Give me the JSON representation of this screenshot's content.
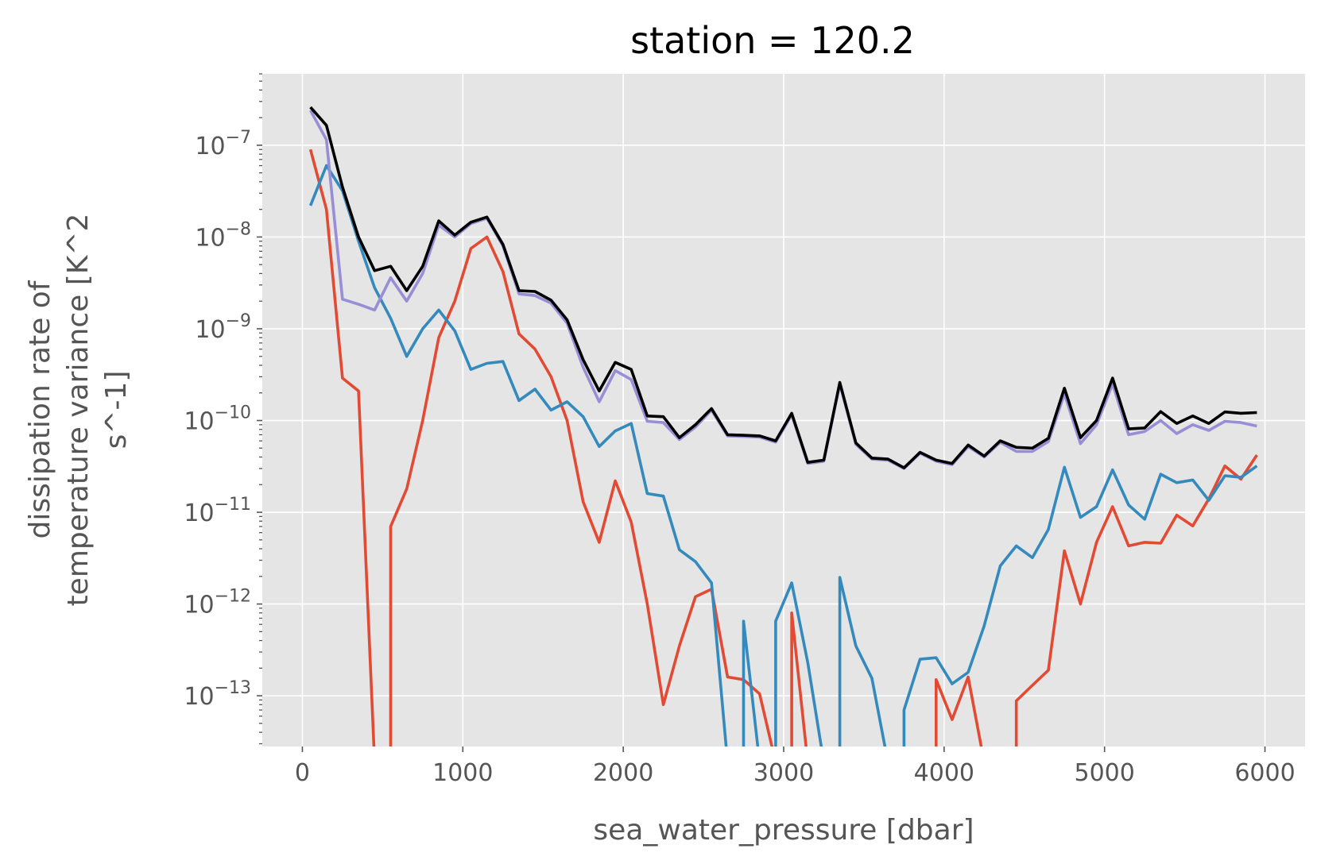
{
  "chart_data": {
    "type": "line",
    "title": "station = 120.2",
    "xlabel": "sea_water_pressure [dbar]",
    "ylabel_lines": [
      "dissipation rate of",
      "temperature variance [K^2",
      "s^-1]"
    ],
    "xscale": "linear",
    "yscale": "log",
    "xlim": [
      -250,
      6250
    ],
    "ylim": [
      2.8e-14,
      6e-07
    ],
    "xticks": [
      0,
      1000,
      2000,
      3000,
      4000,
      5000,
      6000
    ],
    "xtick_labels": [
      "0",
      "1000",
      "2000",
      "3000",
      "4000",
      "5000",
      "6000"
    ],
    "yticks": [
      {
        "base": "10",
        "exp": "−7",
        "value": 1e-07
      },
      {
        "base": "10",
        "exp": "−8",
        "value": 1e-08
      },
      {
        "base": "10",
        "exp": "−9",
        "value": 1e-09
      },
      {
        "base": "10",
        "exp": "−10",
        "value": 1e-10
      },
      {
        "base": "10",
        "exp": "−11",
        "value": 1e-11
      },
      {
        "base": "10",
        "exp": "−12",
        "value": 1e-12
      },
      {
        "base": "10",
        "exp": "−13",
        "value": 1e-13
      }
    ],
    "grid": true,
    "x": [
      50,
      150,
      250,
      350,
      450,
      550,
      650,
      750,
      850,
      950,
      1050,
      1150,
      1250,
      1350,
      1450,
      1550,
      1650,
      1750,
      1850,
      1950,
      2050,
      2150,
      2250,
      2350,
      2450,
      2550,
      2650,
      2750,
      2850,
      2950,
      3050,
      3150,
      3250,
      3350,
      3450,
      3550,
      3650,
      3750,
      3850,
      3950,
      4050,
      4150,
      4250,
      4350,
      4450,
      4550,
      4650,
      4750,
      4850,
      4950,
      5050,
      5150,
      5250,
      5350,
      5450,
      5550,
      5650,
      5750,
      5850,
      5950
    ],
    "series": [
      {
        "name": "red",
        "color": "#E24A33",
        "values": [
          9e-08,
          2e-08,
          2.9e-10,
          2.1e-10,
          null,
          7e-12,
          1.8e-11,
          1e-10,
          8e-10,
          2e-09,
          7.5e-09,
          1e-08,
          4.2e-09,
          8.8e-10,
          6e-10,
          3e-10,
          1e-10,
          1.3e-11,
          4.7e-12,
          2.2e-11,
          7.8e-12,
          1e-12,
          8e-14,
          3.5e-13,
          1.2e-12,
          1.45e-12,
          1.6e-13,
          1.5e-13,
          1.05e-13,
          null,
          8e-13,
          null,
          null,
          null,
          null,
          null,
          null,
          null,
          null,
          1.5e-13,
          5.5e-14,
          1.6e-13,
          null,
          null,
          8.8e-14,
          1.3e-13,
          1.9e-13,
          3.8e-12,
          1e-12,
          4.7e-12,
          1.15e-11,
          4.3e-12,
          4.7e-12,
          4.6e-12,
          9.3e-12,
          7.1e-12,
          1.4e-11,
          3.2e-11,
          2.3e-11,
          4.2e-11
        ]
      },
      {
        "name": "blue",
        "color": "#348ABD",
        "values": [
          2.2e-08,
          6e-08,
          3.2e-08,
          9e-09,
          2.8e-09,
          1.3e-09,
          5e-10,
          1e-09,
          1.6e-09,
          9.5e-10,
          3.6e-10,
          4.2e-10,
          4.4e-10,
          1.65e-10,
          2.2e-10,
          1.3e-10,
          1.6e-10,
          1.1e-10,
          5.2e-11,
          7.7e-11,
          9.3e-11,
          1.6e-11,
          1.5e-11,
          3.9e-12,
          2.9e-12,
          1.7e-12,
          null,
          6.5e-13,
          null,
          6.5e-13,
          1.7e-12,
          2.3e-13,
          null,
          1.95e-12,
          3.5e-13,
          1.55e-13,
          null,
          7e-14,
          2.5e-13,
          2.6e-13,
          1.35e-13,
          1.8e-13,
          5.8e-13,
          2.6e-12,
          4.3e-12,
          3.2e-12,
          6.5e-12,
          3.1e-11,
          8.8e-12,
          1.15e-11,
          2.9e-11,
          1.2e-11,
          8.4e-12,
          2.6e-11,
          2.1e-11,
          2.25e-11,
          1.35e-11,
          2.5e-11,
          2.4e-11,
          3.2e-11
        ]
      },
      {
        "name": "purple",
        "color": "#988ED5",
        "values": [
          2.4e-07,
          1.15e-07,
          2.1e-09,
          1.85e-09,
          1.6e-09,
          3.6e-09,
          2e-09,
          4e-09,
          1.35e-08,
          1e-08,
          1.4e-08,
          1.6e-08,
          8e-09,
          2.4e-09,
          2.3e-09,
          1.9e-09,
          1.15e-09,
          3.8e-10,
          1.6e-10,
          3.5e-10,
          2.8e-10,
          9.8e-11,
          9.5e-11,
          6.2e-11,
          8.5e-11,
          1.3e-10,
          6.8e-11,
          6.7e-11,
          6.6e-11,
          5.8e-11,
          1.15e-10,
          3.4e-11,
          3.6e-11,
          2.5e-10,
          5.5e-11,
          3.8e-11,
          3.7e-11,
          3e-11,
          4.4e-11,
          3.6e-11,
          3.3e-11,
          5.2e-11,
          4e-11,
          5.8e-11,
          4.6e-11,
          4.6e-11,
          5.9e-11,
          1.95e-10,
          5.6e-11,
          9e-11,
          2.5e-10,
          7e-11,
          7.6e-11,
          1e-10,
          7.2e-11,
          9e-11,
          7.8e-11,
          9.8e-11,
          9.5e-11,
          8.7e-11
        ]
      },
      {
        "name": "black",
        "color": "#000000",
        "values": [
          2.6e-07,
          1.65e-07,
          3.5e-08,
          1e-08,
          4.3e-09,
          4.8e-09,
          2.6e-09,
          4.8e-09,
          1.5e-08,
          1.05e-08,
          1.45e-08,
          1.65e-08,
          8.3e-09,
          2.6e-09,
          2.55e-09,
          2.05e-09,
          1.25e-09,
          4.6e-10,
          2.1e-10,
          4.3e-10,
          3.6e-10,
          1.12e-10,
          1.1e-10,
          6.5e-11,
          9e-11,
          1.35e-10,
          7e-11,
          6.9e-11,
          6.8e-11,
          6e-11,
          1.2e-10,
          3.5e-11,
          3.7e-11,
          2.6e-10,
          5.7e-11,
          3.9e-11,
          3.8e-11,
          3.05e-11,
          4.5e-11,
          3.7e-11,
          3.4e-11,
          5.4e-11,
          4.1e-11,
          6e-11,
          5.1e-11,
          5e-11,
          6.4e-11,
          2.25e-10,
          6.5e-11,
          1e-10,
          2.9e-10,
          8.1e-11,
          8.3e-11,
          1.25e-10,
          9.3e-11,
          1.12e-10,
          9.3e-11,
          1.24e-10,
          1.2e-10,
          1.22e-10
        ]
      }
    ]
  }
}
